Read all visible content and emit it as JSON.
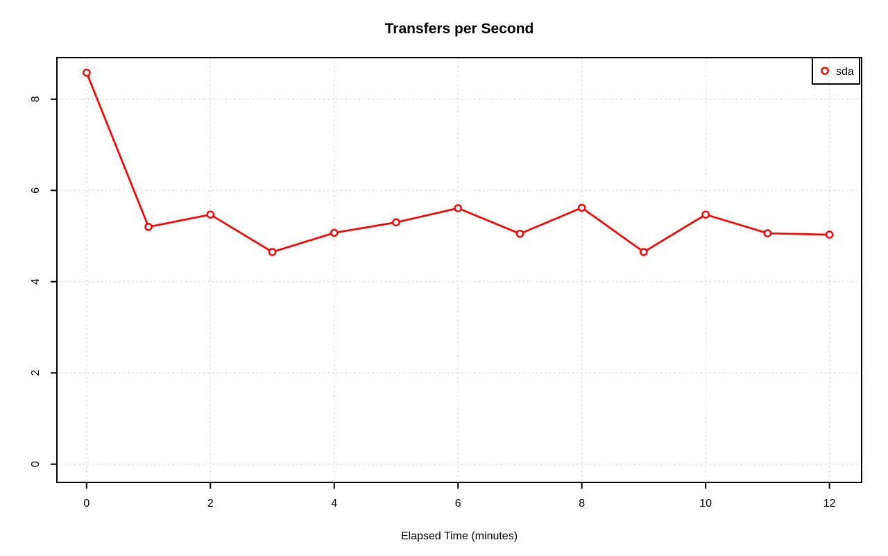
{
  "chart_data": {
    "type": "line",
    "title": "Transfers per Second",
    "xlabel": "Elapsed Time (minutes)",
    "ylabel": "",
    "x": [
      0,
      1,
      2,
      3,
      4,
      5,
      6,
      7,
      8,
      9,
      10,
      11,
      12
    ],
    "series": [
      {
        "name": "sda",
        "color": "#ff0000",
        "marker": "open-circle",
        "values": [
          8.58,
          5.2,
          5.47,
          4.65,
          5.07,
          5.3,
          5.61,
          5.05,
          5.62,
          4.65,
          5.47,
          5.06,
          5.03
        ]
      }
    ],
    "x_ticks": [
      0,
      2,
      4,
      6,
      8,
      10,
      12
    ],
    "y_ticks": [
      0,
      2,
      4,
      6,
      8
    ],
    "xlim": [
      -0.48,
      12.52
    ],
    "ylim": [
      -0.4,
      8.91
    ],
    "grid": "dotted",
    "legend": {
      "position": "topright",
      "items": [
        "sda"
      ]
    }
  },
  "colors": {
    "series": "#ff0000",
    "grid": "#d3d3d3",
    "axis": "#000000",
    "text": "#000000",
    "background": "#ffffff"
  }
}
